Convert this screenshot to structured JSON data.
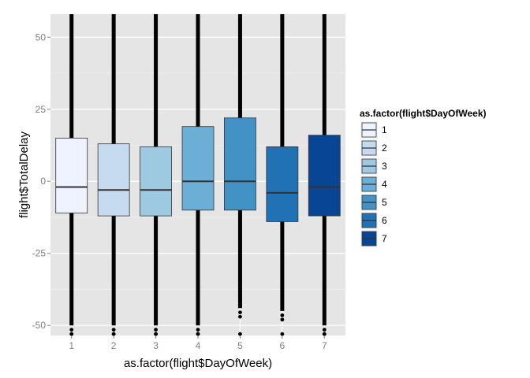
{
  "chart_data": {
    "type": "boxplot",
    "xlabel": "as.factor(flight$DayOfWeek)",
    "ylabel": "flight$TotalDelay",
    "ylim": [
      -53.5,
      58
    ],
    "y_ticks": [
      -50,
      -25,
      0,
      25,
      50
    ],
    "categories": [
      "1",
      "2",
      "3",
      "4",
      "5",
      "6",
      "7"
    ],
    "grid": true,
    "legend": {
      "title": "as.factor(flight$DayOfWeek)",
      "placement": "right",
      "entries": [
        "1",
        "2",
        "3",
        "4",
        "5",
        "6",
        "7"
      ]
    },
    "colors": [
      "#eff3ff",
      "#c6dbef",
      "#9ecae1",
      "#6baed6",
      "#4292c6",
      "#2171b5",
      "#084594"
    ],
    "series": [
      {
        "category": "1",
        "q1": -11,
        "median": -2,
        "q3": 15,
        "whisker_low": -50,
        "whisker_high": 58
      },
      {
        "category": "2",
        "q1": -12,
        "median": -3,
        "q3": 13,
        "whisker_low": -50,
        "whisker_high": 58
      },
      {
        "category": "3",
        "q1": -12,
        "median": -3,
        "q3": 12,
        "whisker_low": -50,
        "whisker_high": 58
      },
      {
        "category": "4",
        "q1": -10,
        "median": 0,
        "q3": 19,
        "whisker_low": -50,
        "whisker_high": 58
      },
      {
        "category": "5",
        "q1": -10,
        "median": 0,
        "q3": 22,
        "whisker_low": -44,
        "whisker_high": 58
      },
      {
        "category": "6",
        "q1": -14,
        "median": -4,
        "q3": 12,
        "whisker_low": -45,
        "whisker_high": 58
      },
      {
        "category": "7",
        "q1": -12,
        "median": -2,
        "q3": 16,
        "whisker_low": -50,
        "whisker_high": 58
      }
    ]
  }
}
